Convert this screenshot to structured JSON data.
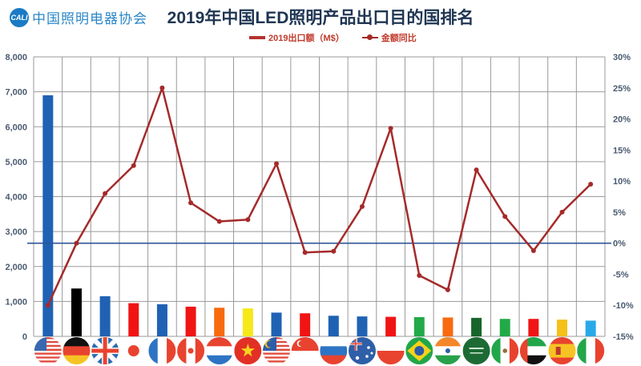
{
  "header": {
    "logo_mark": "CALI",
    "logo_text": "中国照明电器协会",
    "title": "2019年中国LED照明产品出口目的国排名"
  },
  "legend": {
    "bar_label": "2019出口额（M$）",
    "line_label": "金额同比"
  },
  "colors": {
    "line": "#a52a2a",
    "zero_line": "#2f5597",
    "grid": "#9a9a9a"
  },
  "chart_data": {
    "type": "bar",
    "combo": "bar+line (dual axis)",
    "title": "2019年中国LED照明产品出口目的国排名",
    "xlabel": "",
    "ylabel": "2019出口额（M$）",
    "y2label": "金额同比",
    "ylim": [
      0,
      8000
    ],
    "y2lim": [
      -0.15,
      0.3
    ],
    "yticks": [
      "0",
      "1,000",
      "2,000",
      "3,000",
      "4,000",
      "5,000",
      "6,000",
      "7,000",
      "8,000"
    ],
    "y2ticks": [
      "-15%",
      "-10%",
      "-5%",
      "0%",
      "5%",
      "10%",
      "15%",
      "20%",
      "25%",
      "30%"
    ],
    "grid": true,
    "legend_position": "top",
    "categories": [
      "美国",
      "德国",
      "英国",
      "日本",
      "法国",
      "加拿大",
      "荷兰",
      "越南",
      "马来西亚",
      "新加坡",
      "俄罗斯",
      "澳大利亚",
      "波兰",
      "巴西",
      "印度",
      "沙特阿拉伯",
      "墨西哥",
      "阿联酋",
      "西班牙",
      "意大利"
    ],
    "flags": [
      "us-flag",
      "de-flag",
      "gb-flag",
      "jp-flag",
      "fr-flag",
      "ca-flag",
      "nl-flag",
      "vn-flag",
      "my-flag",
      "sg-flag",
      "ru-flag",
      "au-flag",
      "pl-flag",
      "br-flag",
      "in-flag",
      "sa-flag",
      "mx-flag",
      "ae-flag",
      "es-flag",
      "it-flag"
    ],
    "series": [
      {
        "name": "2019出口额（M$）",
        "type": "bar",
        "axis": "left",
        "values": [
          6900,
          1370,
          1150,
          950,
          920,
          850,
          820,
          800,
          680,
          660,
          590,
          570,
          560,
          550,
          540,
          530,
          500,
          500,
          480,
          450
        ],
        "colors": [
          "#1f62b4",
          "#000000",
          "#1f62b4",
          "#f01414",
          "#1f62b4",
          "#f01414",
          "#f86a0e",
          "#f7e81a",
          "#1f62b4",
          "#f01414",
          "#1f62b4",
          "#1f62b4",
          "#f01414",
          "#22aa48",
          "#f86a0e",
          "#17652a",
          "#22aa48",
          "#f01414",
          "#f5c018",
          "#29a9e8"
        ]
      },
      {
        "name": "金额同比",
        "type": "line",
        "axis": "right",
        "values": [
          -0.1,
          0.0,
          0.08,
          0.125,
          0.25,
          0.065,
          0.035,
          0.038,
          0.128,
          -0.015,
          -0.013,
          0.059,
          0.185,
          -0.052,
          -0.075,
          0.118,
          0.043,
          -0.012,
          0.05,
          0.095
        ]
      }
    ]
  }
}
